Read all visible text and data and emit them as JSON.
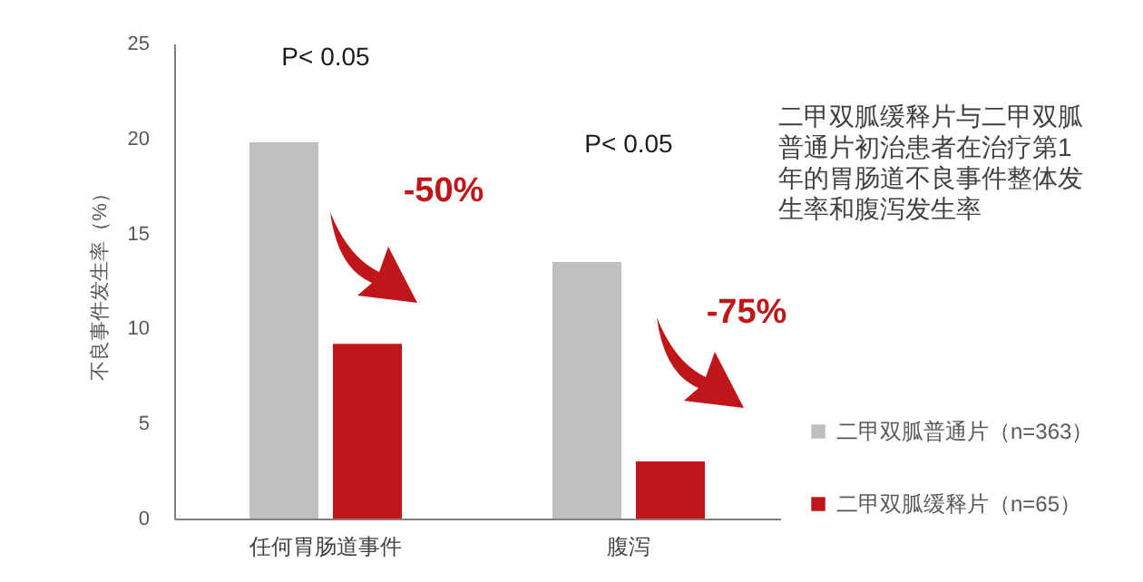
{
  "chart_data": {
    "type": "bar",
    "title": "二甲双胍缓释片与二甲双胍普通片初治患者在治疗第1年的胃肠道不良事件整体发生率和腹泻发生率",
    "ylabel": "不良事件发生率（%）",
    "categories": [
      "任何胃肠道事件",
      "腹泻"
    ],
    "series": [
      {
        "name": "二甲双胍普通片（n=363）",
        "color": "#bfbfbf",
        "values": [
          19.8,
          13.5
        ]
      },
      {
        "name": "二甲双胍缓释片（n=65）",
        "color": "#c0161a",
        "values": [
          9.2,
          3.0
        ]
      }
    ],
    "ylim": [
      0,
      25
    ],
    "yticks": [
      0,
      5,
      10,
      15,
      20,
      25
    ],
    "grid": false,
    "legend": "bottom right",
    "annotations": [
      "P< 0.05",
      "-50%",
      "P< 0.05",
      "-75%"
    ]
  }
}
